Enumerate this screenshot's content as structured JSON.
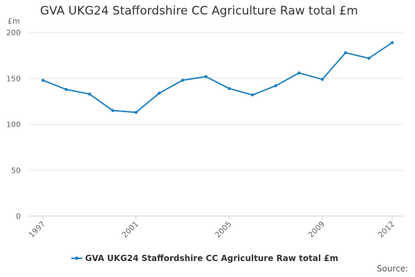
{
  "chart_data": {
    "type": "line",
    "title": "GVA UKG24 Staffordshire CC Agriculture Raw total £m",
    "ylabel": "£m",
    "xlabel": "",
    "ylim": [
      0,
      200
    ],
    "yticks": [
      0,
      50,
      100,
      150,
      200
    ],
    "xtick_labels": [
      "1997",
      "2001",
      "2005",
      "2009",
      "2012"
    ],
    "x": [
      1997,
      1998,
      1999,
      2000,
      2001,
      2002,
      2003,
      2004,
      2005,
      2006,
      2007,
      2008,
      2009,
      2010,
      2011,
      2012
    ],
    "series": [
      {
        "name": "GVA UKG24 Staffordshire CC Agriculture Raw total £m",
        "color": "#1f7fbf",
        "values": [
          148,
          138,
          133,
          115,
          113,
          134,
          148,
          152,
          139,
          132,
          142,
          156,
          149,
          178,
          172,
          189
        ]
      }
    ],
    "grid": true,
    "legend": "bottom-center"
  },
  "footer": {
    "source_label": "Source:"
  }
}
